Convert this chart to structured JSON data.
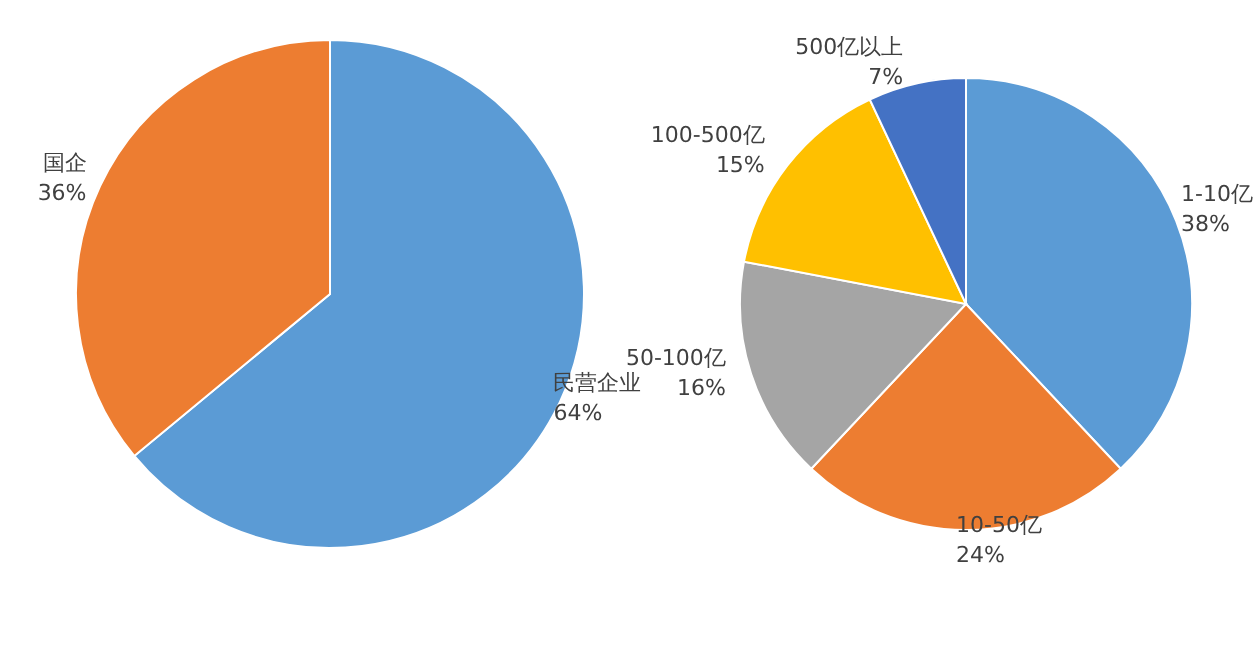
{
  "chart_data": [
    {
      "type": "pie",
      "categories": [
        "民营企业",
        "国企"
      ],
      "values": [
        64,
        36
      ],
      "value_labels": [
        "64%",
        "36%"
      ],
      "colors": [
        "#5b9bd5",
        "#ed7d31"
      ],
      "legend": false
    },
    {
      "type": "pie",
      "categories": [
        "1-10亿",
        "10-50亿",
        "50-100亿",
        "100-500亿",
        "500亿以上"
      ],
      "values": [
        38,
        24,
        16,
        15,
        7
      ],
      "value_labels": [
        "38%",
        "24%",
        "16%",
        "15%",
        "7%"
      ],
      "colors": [
        "#5b9bd5",
        "#ed7d31",
        "#a5a5a5",
        "#ffc000",
        "#4472c4"
      ],
      "legend": false
    }
  ]
}
